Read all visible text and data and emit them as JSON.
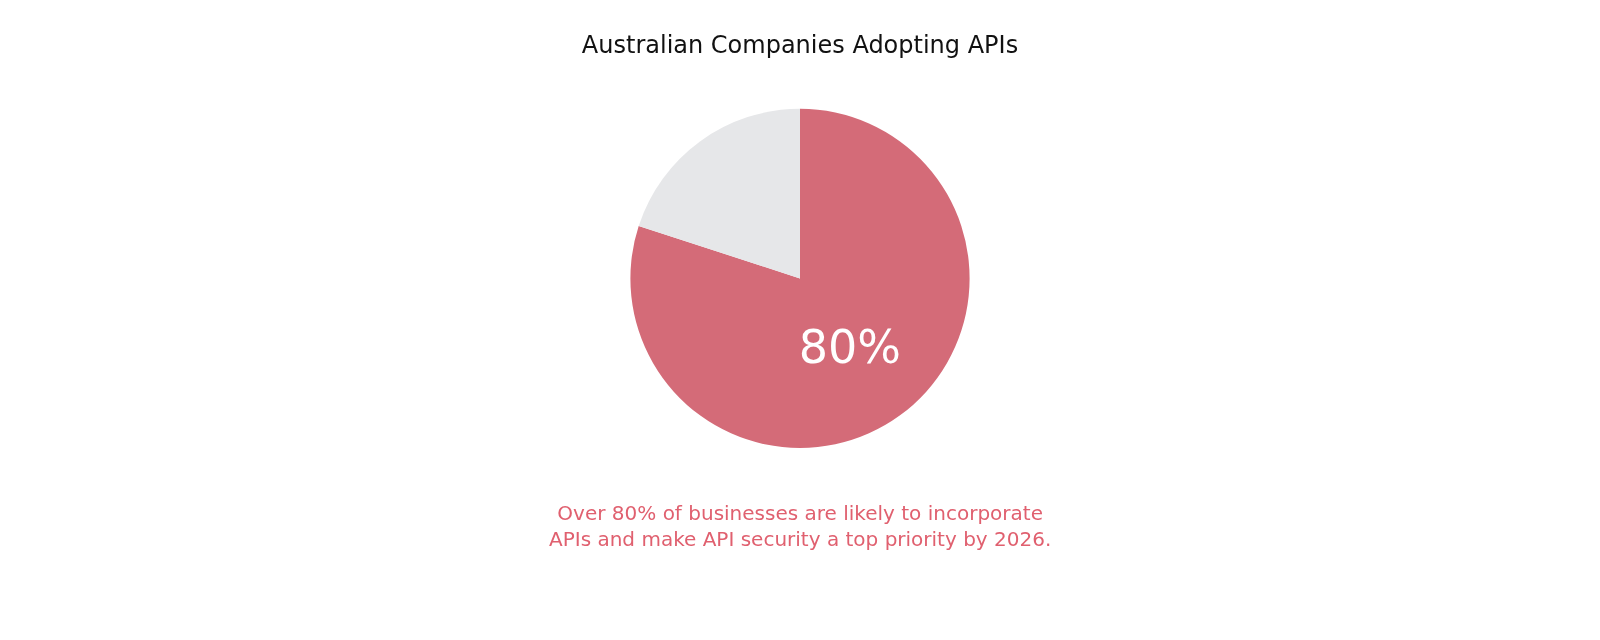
{
  "chart_data": {
    "type": "pie",
    "title": "Australian Companies Adopting APIs",
    "categories": [
      null,
      null
    ],
    "values": [
      80,
      20
    ],
    "colors": [
      "#d46b78",
      "#e6e7e9"
    ],
    "value_labels": [
      "80%",
      null
    ],
    "legend": false,
    "annotations": [
      "Over 80% of businesses are likely to incorporate\nAPIs and make API security a top priority by 2026."
    ]
  }
}
